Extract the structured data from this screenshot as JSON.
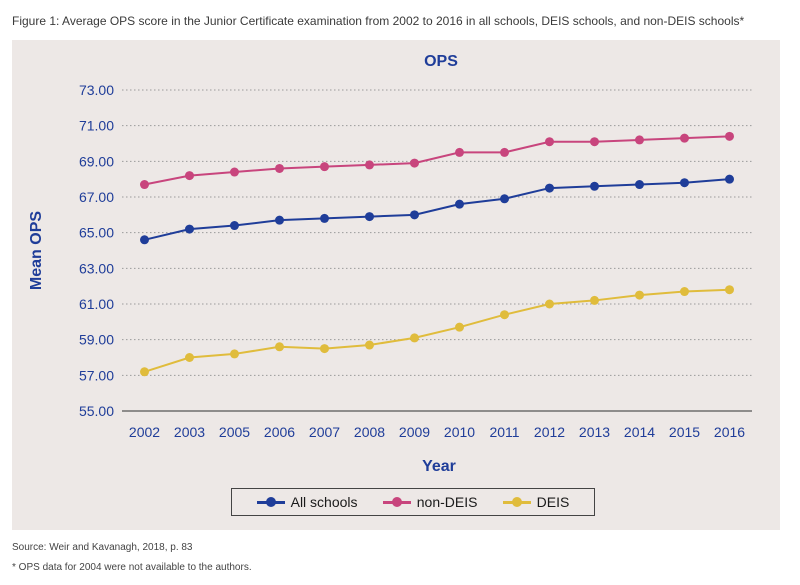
{
  "caption": "Figure 1: Average OPS score in the Junior Certificate examination from 2002 to 2016 in all schools, DEIS schools, and non-DEIS schools*",
  "source": "Source: Weir and Kavanagh, 2018, p. 83",
  "footnote": "* OPS data for 2004 were not available to the authors.",
  "chart_data": {
    "type": "line",
    "title": "OPS",
    "xlabel": "Year",
    "ylabel": "Mean OPS",
    "categories": [
      "2002",
      "2003",
      "2005",
      "2006",
      "2007",
      "2008",
      "2009",
      "2010",
      "2011",
      "2012",
      "2013",
      "2014",
      "2015",
      "2016"
    ],
    "yticks": [
      "55.00",
      "57.00",
      "59.00",
      "61.00",
      "63.00",
      "65.00",
      "67.00",
      "69.00",
      "71.00",
      "73.00"
    ],
    "ylim": [
      55,
      73
    ],
    "grid": "horizontal dotted",
    "legend_position": "bottom",
    "series": [
      {
        "name": "All schools",
        "color": "#1f3d99",
        "values": [
          64.6,
          65.2,
          65.4,
          65.7,
          65.8,
          65.9,
          66.0,
          66.6,
          66.9,
          67.5,
          67.6,
          67.7,
          67.8,
          68.0
        ]
      },
      {
        "name": "non-DEIS",
        "color": "#c8457d",
        "values": [
          67.7,
          68.2,
          68.4,
          68.6,
          68.7,
          68.8,
          68.9,
          69.5,
          69.5,
          70.1,
          70.1,
          70.2,
          70.3,
          70.4
        ]
      },
      {
        "name": "DEIS",
        "color": "#e0bc3c",
        "values": [
          57.2,
          58.0,
          58.2,
          58.6,
          58.5,
          58.7,
          59.1,
          59.7,
          60.4,
          61.0,
          61.2,
          61.5,
          61.7,
          61.8
        ]
      }
    ]
  }
}
